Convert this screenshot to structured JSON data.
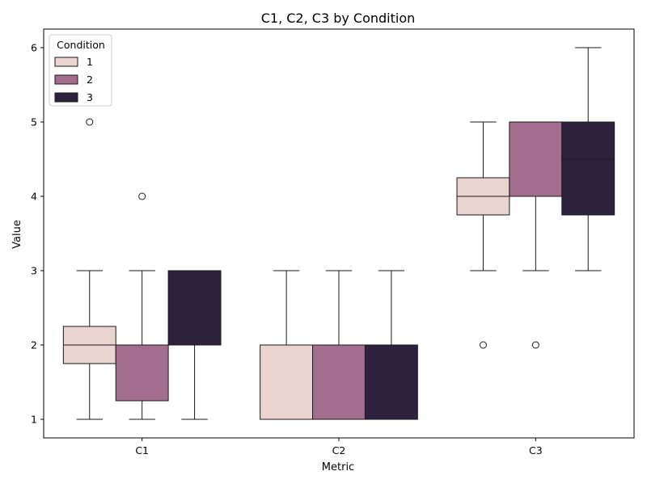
{
  "chart_data": {
    "type": "box",
    "title": "C1, C2, C3 by Condition",
    "xlabel": "Metric",
    "ylabel": "Value",
    "categories": [
      "C1",
      "C2",
      "C3"
    ],
    "ylim": [
      0.75,
      6.25
    ],
    "yticks": [
      1,
      2,
      3,
      4,
      5,
      6
    ],
    "grid": false,
    "legend": {
      "title": "Condition",
      "placement": "top-left"
    },
    "series": [
      {
        "name": "1",
        "color": "#ebd3d0",
        "boxes": [
          {
            "category": "C1",
            "whisker_low": 1,
            "q1": 1.75,
            "median": 2,
            "q3": 2.25,
            "whisker_high": 3,
            "outliers": [
              5
            ]
          },
          {
            "category": "C2",
            "whisker_low": 1,
            "q1": 1,
            "median": 2,
            "q3": 2,
            "whisker_high": 3,
            "outliers": []
          },
          {
            "category": "C3",
            "whisker_low": 3,
            "q1": 3.75,
            "median": 4,
            "q3": 4.25,
            "whisker_high": 5,
            "outliers": [
              2
            ]
          }
        ]
      },
      {
        "name": "2",
        "color": "#a36d8e",
        "boxes": [
          {
            "category": "C1",
            "whisker_low": 1,
            "q1": 1.25,
            "median": 2,
            "q3": 2,
            "whisker_high": 3,
            "outliers": [
              4
            ]
          },
          {
            "category": "C2",
            "whisker_low": 1,
            "q1": 1,
            "median": 1,
            "q3": 2,
            "whisker_high": 3,
            "outliers": []
          },
          {
            "category": "C3",
            "whisker_low": 3,
            "q1": 4,
            "median": 5,
            "q3": 5,
            "whisker_high": 5,
            "outliers": [
              2
            ]
          }
        ]
      },
      {
        "name": "3",
        "color": "#2d213e",
        "boxes": [
          {
            "category": "C1",
            "whisker_low": 1,
            "q1": 2,
            "median": 3,
            "q3": 3,
            "whisker_high": 3,
            "outliers": []
          },
          {
            "category": "C2",
            "whisker_low": 1,
            "q1": 1,
            "median": 2,
            "q3": 2,
            "whisker_high": 3,
            "outliers": []
          },
          {
            "category": "C3",
            "whisker_low": 3,
            "q1": 3.75,
            "median": 4.5,
            "q3": 5,
            "whisker_high": 6,
            "outliers": []
          }
        ]
      }
    ]
  }
}
